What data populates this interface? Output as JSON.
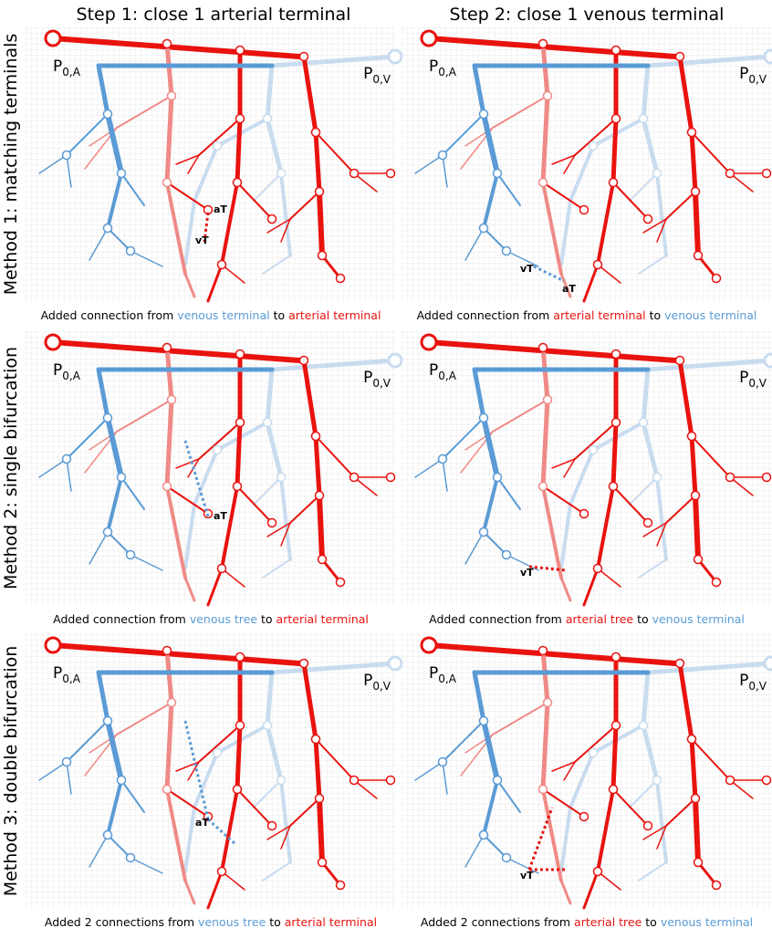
{
  "columns": [
    "Step 1: close 1 arterial terminal",
    "Step 2: close 1 venous terminal"
  ],
  "rows": [
    {
      "label": "Method 1: matching terminals",
      "panels": [
        {
          "root_a": {
            "symbol": "P",
            "subscript": "0,A"
          },
          "root_v": {
            "symbol": "P",
            "subscript": "0,V"
          },
          "markers": [
            "aT",
            "vT"
          ],
          "caption": [
            {
              "text": "Added connection from "
            },
            {
              "text": "venous terminal",
              "color": "#5b9bd5"
            },
            {
              "text": " to "
            },
            {
              "text": "arterial terminal",
              "color": "#e8130f"
            }
          ]
        },
        {
          "root_a": {
            "symbol": "P",
            "subscript": "0,A"
          },
          "root_v": {
            "symbol": "P",
            "subscript": "0,V"
          },
          "markers": [
            "vT",
            "aT"
          ],
          "caption": [
            {
              "text": "Added connection from "
            },
            {
              "text": "arterial terminal",
              "color": "#e8130f"
            },
            {
              "text": " to "
            },
            {
              "text": "venous terminal",
              "color": "#5b9bd5"
            }
          ]
        }
      ]
    },
    {
      "label": "Method 2: single bifurcation",
      "panels": [
        {
          "root_a": {
            "symbol": "P",
            "subscript": "0,A"
          },
          "root_v": {
            "symbol": "P",
            "subscript": "0,V"
          },
          "markers": [
            "aT"
          ],
          "caption": [
            {
              "text": "Added connection from "
            },
            {
              "text": "venous tree",
              "color": "#5b9bd5"
            },
            {
              "text": " to "
            },
            {
              "text": "arterial terminal",
              "color": "#e8130f"
            }
          ]
        },
        {
          "root_a": {
            "symbol": "P",
            "subscript": "0,A"
          },
          "root_v": {
            "symbol": "P",
            "subscript": "0,V"
          },
          "markers": [
            "vT"
          ],
          "caption": [
            {
              "text": "Added connection from "
            },
            {
              "text": "arterial tree",
              "color": "#e8130f"
            },
            {
              "text": " to "
            },
            {
              "text": "venous terminal",
              "color": "#5b9bd5"
            }
          ]
        }
      ]
    },
    {
      "label": "Method 3: double bifurcation",
      "panels": [
        {
          "root_a": {
            "symbol": "P",
            "subscript": "0,A"
          },
          "root_v": {
            "symbol": "P",
            "subscript": "0,V"
          },
          "markers": [
            "aT"
          ],
          "caption": [
            {
              "text": "Added 2 connections from "
            },
            {
              "text": "venous tree",
              "color": "#5b9bd5"
            },
            {
              "text": " to "
            },
            {
              "text": "arterial terminal",
              "color": "#e8130f"
            }
          ]
        },
        {
          "root_a": {
            "symbol": "P",
            "subscript": "0,A"
          },
          "root_v": {
            "symbol": "P",
            "subscript": "0,V"
          },
          "markers": [
            "vT"
          ],
          "caption": [
            {
              "text": "Added 2 connections from "
            },
            {
              "text": "arterial tree",
              "color": "#e8130f"
            },
            {
              "text": " to "
            },
            {
              "text": "venous terminal",
              "color": "#5b9bd5"
            }
          ]
        }
      ]
    }
  ]
}
